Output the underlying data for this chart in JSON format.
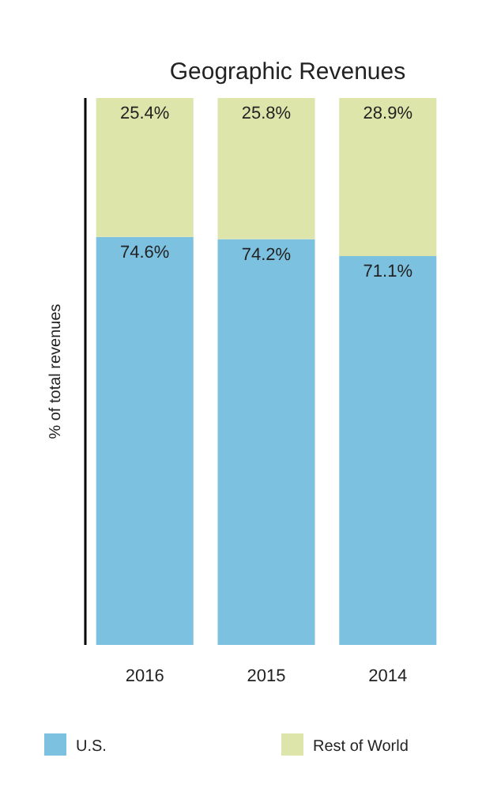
{
  "chart_data": {
    "type": "bar",
    "title": "Geographic Revenues",
    "ylabel": "% of total revenues",
    "categories": [
      "2016",
      "2015",
      "2014"
    ],
    "series": [
      {
        "name": "U.S.",
        "color": "#7dc1e0",
        "values": [
          74.6,
          74.2,
          71.1
        ],
        "value_labels": [
          "74.6%",
          "74.2%",
          "71.1%"
        ]
      },
      {
        "name": "Rest of World",
        "color": "#dde5aa",
        "values": [
          25.4,
          25.8,
          28.9
        ],
        "value_labels": [
          "25.4%",
          "25.8%",
          "28.9%"
        ]
      }
    ],
    "stacked": true,
    "tick_labels": "x",
    "legend": "bottom"
  }
}
